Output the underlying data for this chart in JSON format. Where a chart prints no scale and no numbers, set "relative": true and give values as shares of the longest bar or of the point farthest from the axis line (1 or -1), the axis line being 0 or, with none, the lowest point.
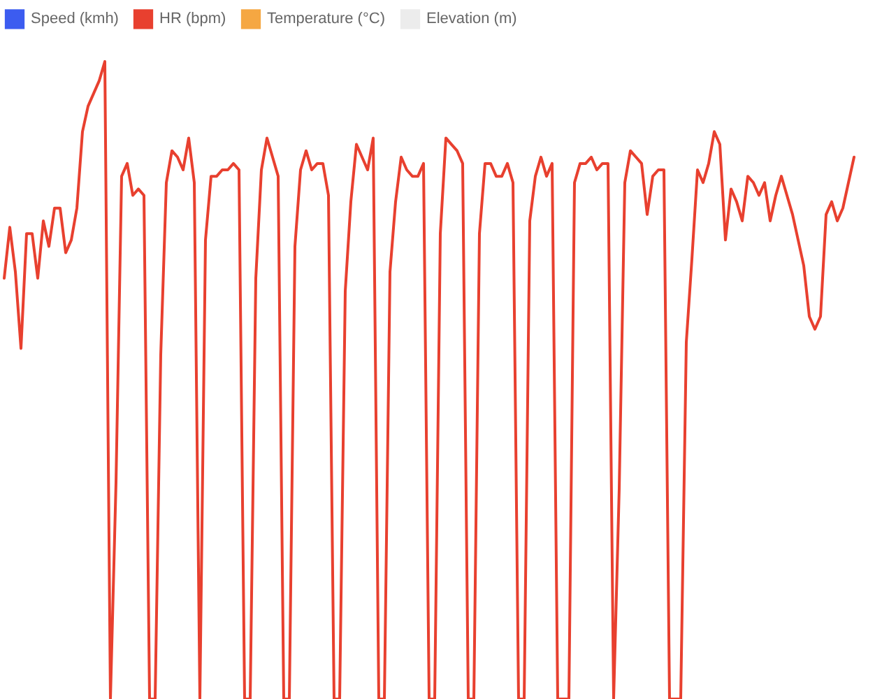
{
  "chart_data": {
    "type": "line",
    "relative": true,
    "legend": "top",
    "line_style": "solid",
    "categories": [
      null,
      null,
      null,
      null,
      null,
      null,
      null,
      null,
      null,
      null,
      null,
      null,
      null,
      null,
      null,
      null,
      null,
      null,
      null,
      null,
      null,
      null,
      null,
      null,
      null,
      null,
      null,
      null,
      null,
      null,
      null,
      null,
      null,
      null,
      null,
      null,
      null,
      null,
      null,
      null,
      null,
      null,
      null,
      null,
      null,
      null,
      null,
      null,
      null,
      null,
      null,
      null,
      null,
      null,
      null,
      null,
      null,
      null,
      null,
      null,
      null,
      null,
      null,
      null,
      null,
      null,
      null,
      null,
      null,
      null,
      null,
      null,
      null,
      null,
      null,
      null,
      null,
      null,
      null,
      null,
      null,
      null,
      null,
      null,
      null,
      null,
      null,
      null,
      null,
      null,
      null,
      null,
      null,
      null,
      null,
      null,
      null,
      null,
      null,
      null,
      null,
      null,
      null,
      null,
      null,
      null,
      null,
      null,
      null,
      null,
      null,
      null,
      null,
      null,
      null,
      null,
      null,
      null,
      null,
      null,
      null,
      null,
      null,
      null,
      null,
      null,
      null,
      null,
      null,
      null,
      null,
      null,
      null,
      null,
      null,
      null,
      null,
      null,
      null,
      null,
      null,
      null,
      null,
      null,
      null,
      null,
      null,
      null,
      null,
      null,
      null,
      null,
      null
    ],
    "series": [
      {
        "name": "Speed (kmh)",
        "color": "#3c5cf0",
        "values": [
          null,
          null,
          null,
          null,
          null,
          null,
          null,
          null,
          null,
          null,
          null,
          null,
          null,
          null,
          null,
          null,
          null,
          null,
          null,
          null,
          null,
          null,
          null,
          null,
          null,
          null,
          null,
          null,
          null,
          null,
          null,
          null,
          null,
          null,
          null,
          null,
          null,
          null,
          null,
          null,
          null,
          null,
          null,
          null,
          null,
          null,
          null,
          null,
          null,
          null,
          null,
          null,
          null,
          null,
          null,
          null,
          null,
          null,
          null,
          null,
          null,
          null,
          null,
          null,
          null,
          null,
          null,
          null,
          null,
          null,
          null,
          null,
          null,
          null,
          null,
          null,
          null,
          null,
          null,
          null,
          null,
          null,
          null,
          null,
          null,
          null,
          null,
          null,
          null,
          null,
          null,
          null,
          null,
          null,
          null,
          null,
          null,
          null,
          null,
          null,
          null,
          null,
          null,
          null,
          null,
          null,
          null,
          null,
          null,
          null,
          null,
          null,
          null,
          null,
          null,
          null,
          null,
          null,
          null,
          null,
          null,
          null,
          null,
          null,
          null,
          null,
          null,
          null,
          null,
          null,
          null,
          null,
          null,
          null,
          null,
          null,
          null,
          null,
          null,
          null,
          null,
          null,
          null,
          null,
          null,
          null,
          null,
          null,
          null,
          null,
          null,
          null,
          null
        ]
      },
      {
        "name": "HR (bpm)",
        "color": "#e8402f",
        "values": [
          0.66,
          0.74,
          0.67,
          0.55,
          0.73,
          0.73,
          0.66,
          0.75,
          0.71,
          0.77,
          0.77,
          0.7,
          0.72,
          0.77,
          0.89,
          0.93,
          0.95,
          0.97,
          1,
          0,
          0.34,
          0.82,
          0.84,
          0.79,
          0.8,
          0.79,
          0,
          0,
          0.54,
          0.81,
          0.86,
          0.85,
          0.83,
          0.88,
          0.81,
          0,
          0.72,
          0.82,
          0.82,
          0.83,
          0.83,
          0.84,
          0.83,
          0,
          0,
          0.66,
          0.83,
          0.88,
          0.85,
          0.82,
          0,
          0,
          0.71,
          0.83,
          0.86,
          0.83,
          0.84,
          0.84,
          0.79,
          0,
          0,
          0.64,
          0.78,
          0.87,
          0.85,
          0.83,
          0.88,
          0,
          0,
          0.67,
          0.78,
          0.85,
          0.83,
          0.82,
          0.82,
          0.84,
          0,
          0,
          0.73,
          0.88,
          0.87,
          0.86,
          0.84,
          0,
          0,
          0.73,
          0.84,
          0.84,
          0.82,
          0.82,
          0.84,
          0.81,
          0,
          0,
          0.75,
          0.82,
          0.85,
          0.82,
          0.84,
          0,
          0,
          0,
          0.81,
          0.84,
          0.84,
          0.85,
          0.83,
          0.84,
          0.84,
          0,
          0.33,
          0.81,
          0.86,
          0.85,
          0.84,
          0.76,
          0.82,
          0.83,
          0.83,
          0,
          0,
          0,
          0.56,
          0.69,
          0.83,
          0.81,
          0.84,
          0.89,
          0.87,
          0.72,
          0.8,
          0.78,
          0.75,
          0.82,
          0.81,
          0.79,
          0.81,
          0.75,
          0.79,
          0.82,
          0.79,
          0.76,
          0.72,
          0.68,
          0.6,
          0.58,
          0.6,
          0.76,
          0.78,
          0.75,
          0.77,
          0.81,
          0.85
        ]
      },
      {
        "name": "Temperature (°C)",
        "color": "#f5a742",
        "values": [
          null,
          null,
          null,
          null,
          null,
          null,
          null,
          null,
          null,
          null,
          null,
          null,
          null,
          null,
          null,
          null,
          null,
          null,
          null,
          null,
          null,
          null,
          null,
          null,
          null,
          null,
          null,
          null,
          null,
          null,
          null,
          null,
          null,
          null,
          null,
          null,
          null,
          null,
          null,
          null,
          null,
          null,
          null,
          null,
          null,
          null,
          null,
          null,
          null,
          null,
          null,
          null,
          null,
          null,
          null,
          null,
          null,
          null,
          null,
          null,
          null,
          null,
          null,
          null,
          null,
          null,
          null,
          null,
          null,
          null,
          null,
          null,
          null,
          null,
          null,
          null,
          null,
          null,
          null,
          null,
          null,
          null,
          null,
          null,
          null,
          null,
          null,
          null,
          null,
          null,
          null,
          null,
          null,
          null,
          null,
          null,
          null,
          null,
          null,
          null,
          null,
          null,
          null,
          null,
          null,
          null,
          null,
          null,
          null,
          null,
          null,
          null,
          null,
          null,
          null,
          null,
          null,
          null,
          null,
          null,
          null,
          null,
          null,
          null,
          null,
          null,
          null,
          null,
          null,
          null,
          null,
          null,
          null,
          null,
          null,
          null,
          null,
          null,
          null,
          null,
          null,
          null,
          null,
          null,
          null,
          null,
          null,
          null,
          null,
          null,
          null,
          null,
          null
        ]
      },
      {
        "name": "Elevation (m)",
        "color": "#ececec",
        "values": [
          null,
          null,
          null,
          null,
          null,
          null,
          null,
          null,
          null,
          null,
          null,
          null,
          null,
          null,
          null,
          null,
          null,
          null,
          null,
          null,
          null,
          null,
          null,
          null,
          null,
          null,
          null,
          null,
          null,
          null,
          null,
          null,
          null,
          null,
          null,
          null,
          null,
          null,
          null,
          null,
          null,
          null,
          null,
          null,
          null,
          null,
          null,
          null,
          null,
          null,
          null,
          null,
          null,
          null,
          null,
          null,
          null,
          null,
          null,
          null,
          null,
          null,
          null,
          null,
          null,
          null,
          null,
          null,
          null,
          null,
          null,
          null,
          null,
          null,
          null,
          null,
          null,
          null,
          null,
          null,
          null,
          null,
          null,
          null,
          null,
          null,
          null,
          null,
          null,
          null,
          null,
          null,
          null,
          null,
          null,
          null,
          null,
          null,
          null,
          null,
          null,
          null,
          null,
          null,
          null,
          null,
          null,
          null,
          null,
          null,
          null,
          null,
          null,
          null,
          null,
          null,
          null,
          null,
          null,
          null,
          null,
          null,
          null,
          null,
          null,
          null,
          null,
          null,
          null,
          null,
          null,
          null,
          null,
          null,
          null,
          null,
          null,
          null,
          null,
          null,
          null,
          null,
          null,
          null,
          null,
          null,
          null,
          null,
          null,
          null,
          null,
          null,
          null
        ]
      }
    ]
  }
}
